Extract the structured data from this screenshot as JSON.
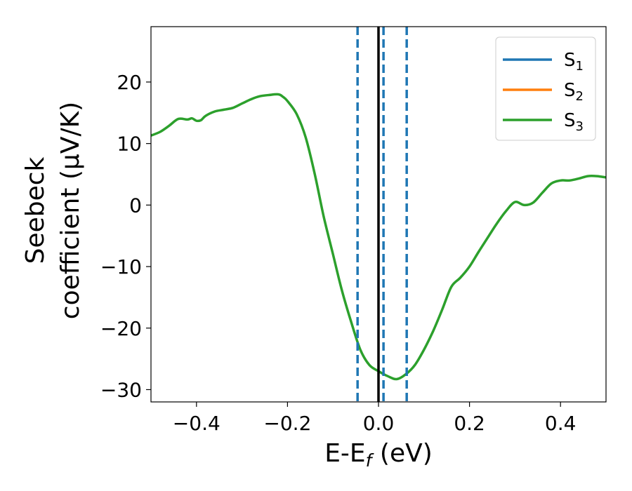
{
  "chart_data": {
    "type": "line",
    "title": "",
    "xlabel": "E-E",
    "xlabel_sub": "f",
    "xlabel_unit": " (eV)",
    "ylabel_line1": "Seebeck",
    "ylabel_line2": "coefficient  (μV/K)",
    "xlim": [
      -0.5,
      0.5
    ],
    "ylim": [
      -32,
      29
    ],
    "xticks": [
      -0.4,
      -0.2,
      0.0,
      0.2,
      0.4
    ],
    "xtick_labels": [
      "−0.4",
      "−0.2",
      "0.0",
      "0.2",
      "0.4"
    ],
    "yticks": [
      20,
      10,
      0,
      -10,
      -20,
      -30
    ],
    "ytick_labels": [
      "20",
      "10",
      "0",
      "−10",
      "−20",
      "−30"
    ],
    "grid": false,
    "legend_position": "top-right",
    "colors": {
      "s1": "#1f77b4",
      "s2": "#ff7f0e",
      "s3": "#2ca02c",
      "fermi": "#000000",
      "dashed": "#1f77b4"
    },
    "legend": [
      {
        "base": "S",
        "sub": "1",
        "color": "#1f77b4"
      },
      {
        "base": "S",
        "sub": "2",
        "color": "#ff7f0e"
      },
      {
        "base": "S",
        "sub": "3",
        "color": "#2ca02c"
      }
    ],
    "vlines_solid": [
      0.0
    ],
    "vlines_dashed": [
      -0.046,
      0.011,
      0.062
    ],
    "series": [
      {
        "key": "s3",
        "x": [
          -0.5,
          -0.48,
          -0.46,
          -0.44,
          -0.42,
          -0.41,
          -0.4,
          -0.39,
          -0.38,
          -0.36,
          -0.34,
          -0.32,
          -0.3,
          -0.28,
          -0.26,
          -0.24,
          -0.22,
          -0.21,
          -0.2,
          -0.18,
          -0.16,
          -0.14,
          -0.12,
          -0.1,
          -0.08,
          -0.06,
          -0.04,
          -0.02,
          0.0,
          0.02,
          0.04,
          0.06,
          0.08,
          0.1,
          0.12,
          0.14,
          0.16,
          0.18,
          0.2,
          0.22,
          0.24,
          0.26,
          0.28,
          0.3,
          0.32,
          0.34,
          0.36,
          0.38,
          0.4,
          0.42,
          0.44,
          0.46,
          0.48,
          0.5
        ],
        "y": [
          11.3,
          11.9,
          12.9,
          14.0,
          13.9,
          14.1,
          13.7,
          13.8,
          14.5,
          15.2,
          15.5,
          15.8,
          16.5,
          17.2,
          17.7,
          17.9,
          18.0,
          17.6,
          16.9,
          14.8,
          11.0,
          5.0,
          -2.0,
          -8.0,
          -14.0,
          -19.0,
          -23.5,
          -26.0,
          -27.0,
          -27.8,
          -28.3,
          -27.5,
          -26.0,
          -23.5,
          -20.5,
          -17.0,
          -13.3,
          -11.8,
          -10.0,
          -7.6,
          -5.3,
          -3.0,
          -1.0,
          0.5,
          0.0,
          0.4,
          2.0,
          3.5,
          4.0,
          4.0,
          4.3,
          4.7,
          4.7,
          4.5
        ]
      }
    ]
  }
}
